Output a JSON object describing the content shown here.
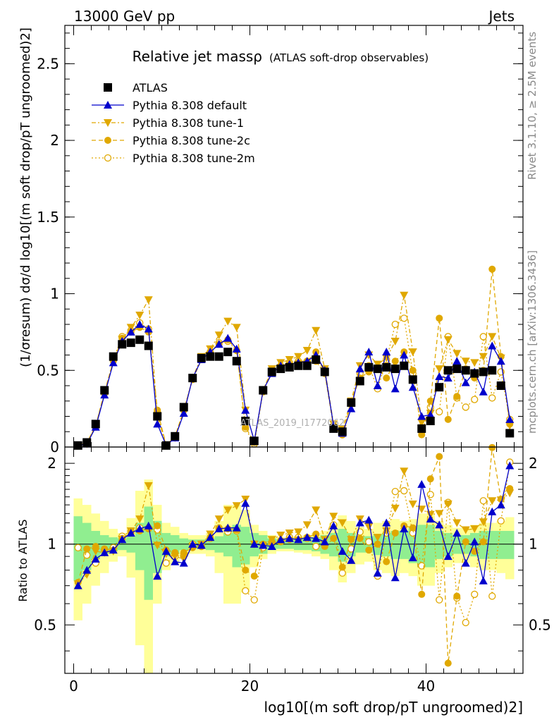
{
  "header": {
    "left": "13000 GeV pp",
    "right": "Jets"
  },
  "side_text": {
    "rivet": "Rivet 3.1.10, ≥ 2.5M events",
    "mcplots": "mcplots.cern.ch [arXiv:1306.3436]"
  },
  "chart_data": {
    "type": "scatter",
    "title": "Relative jet massρ",
    "subtitle": "(ATLAS soft-drop observables)",
    "watermark": "ATLAS_2019_I1772062",
    "ylabel": "(1/σresum) dσ/d log10[(m soft drop/pT ungroomed)2]",
    "xlabel": "log10[(m soft drop/pT ungroomed)2]",
    "ratio_ylabel": "Ratio to ATLAS",
    "xlim": [
      -1,
      51
    ],
    "ylim": [
      0,
      2.75
    ],
    "ratio_ylim": [
      0.33,
      2.3
    ],
    "x_ticks": [
      "0",
      "20",
      "40"
    ],
    "y_ticks": [
      "0",
      "0.5",
      "1",
      "1.5",
      "2",
      "2.5"
    ],
    "ratio_ticks": [
      "0.5",
      "1",
      "2"
    ],
    "legend_position": "top-left",
    "x": [
      0.5,
      1.5,
      2.5,
      3.5,
      4.5,
      5.5,
      6.5,
      7.5,
      8.5,
      9.5,
      10.5,
      11.5,
      12.5,
      13.5,
      14.5,
      15.5,
      16.5,
      17.5,
      18.5,
      19.5,
      20.5,
      21.5,
      22.5,
      23.5,
      24.5,
      25.5,
      26.5,
      27.5,
      28.5,
      29.5,
      30.5,
      31.5,
      32.5,
      33.5,
      34.5,
      35.5,
      36.5,
      37.5,
      38.5,
      39.5,
      40.5,
      41.5,
      42.5,
      43.5,
      44.5,
      45.5,
      46.5,
      47.5,
      48.5,
      49.5
    ],
    "series": [
      {
        "name": "ATLAS",
        "color": "#000000",
        "marker": "square",
        "values": [
          0.01,
          0.03,
          0.15,
          0.37,
          0.59,
          0.67,
          0.68,
          0.7,
          0.66,
          0.2,
          0.01,
          0.07,
          0.26,
          0.45,
          0.58,
          0.59,
          0.59,
          0.62,
          0.56,
          0.17,
          0.04,
          0.37,
          0.49,
          0.51,
          0.52,
          0.53,
          0.53,
          0.57,
          0.49,
          0.12,
          0.1,
          0.29,
          0.43,
          0.52,
          0.51,
          0.52,
          0.51,
          0.53,
          0.44,
          0.12,
          0.17,
          0.39,
          0.5,
          0.51,
          0.5,
          0.48,
          0.49,
          0.5,
          0.4,
          0.09
        ],
        "ratio": [
          1,
          1,
          1,
          1,
          1,
          1,
          1,
          1,
          1,
          1,
          1,
          1,
          1,
          1,
          1,
          1,
          1,
          1,
          1,
          1,
          1,
          1,
          1,
          1,
          1,
          1,
          1,
          1,
          1,
          1,
          1,
          1,
          1,
          1,
          1,
          1,
          1,
          1,
          1,
          1,
          1,
          1,
          1,
          1,
          1,
          1,
          1,
          1,
          1,
          1
        ]
      },
      {
        "name": "Pythia 8.308 default",
        "color": "#0000cc",
        "marker": "triangle-up",
        "line": "solid",
        "values": [
          0.01,
          0.02,
          0.13,
          0.34,
          0.55,
          0.69,
          0.75,
          0.8,
          0.77,
          0.15,
          0.01,
          0.06,
          0.22,
          0.45,
          0.57,
          0.62,
          0.67,
          0.71,
          0.64,
          0.24,
          0.04,
          0.37,
          0.48,
          0.53,
          0.54,
          0.55,
          0.56,
          0.6,
          0.5,
          0.14,
          0.09,
          0.25,
          0.51,
          0.62,
          0.4,
          0.62,
          0.38,
          0.6,
          0.39,
          0.2,
          0.21,
          0.46,
          0.45,
          0.56,
          0.42,
          0.49,
          0.36,
          0.66,
          0.56,
          0.18
        ],
        "ratio": [
          0.7,
          0.8,
          0.88,
          0.93,
          0.95,
          1.04,
          1.1,
          1.14,
          1.17,
          0.76,
          0.94,
          0.86,
          0.85,
          1.0,
          0.99,
          1.06,
          1.14,
          1.15,
          1.15,
          1.42,
          1.0,
          0.99,
          0.98,
          1.04,
          1.05,
          1.04,
          1.06,
          1.05,
          1.02,
          1.17,
          0.94,
          0.87,
          1.2,
          1.23,
          0.78,
          1.2,
          0.75,
          1.14,
          0.89,
          1.67,
          1.24,
          1.18,
          0.9,
          1.1,
          0.85,
          1.02,
          0.73,
          1.32,
          1.4,
          1.96
        ]
      },
      {
        "name": "Pythia 8.308 tune-1",
        "color": "#e0a800",
        "marker": "triangle-down",
        "line": "dashdot",
        "values": [
          0.01,
          0.02,
          0.14,
          0.35,
          0.56,
          0.7,
          0.78,
          0.86,
          0.96,
          0.2,
          0.01,
          0.06,
          0.23,
          0.45,
          0.59,
          0.64,
          0.73,
          0.82,
          0.78,
          0.24,
          0.04,
          0.37,
          0.51,
          0.55,
          0.57,
          0.59,
          0.63,
          0.76,
          0.51,
          0.15,
          0.12,
          0.3,
          0.53,
          0.6,
          0.54,
          0.58,
          0.69,
          0.99,
          0.62,
          0.16,
          0.22,
          0.51,
          0.7,
          0.61,
          0.56,
          0.55,
          0.59,
          0.72,
          0.58,
          0.14
        ],
        "ratio": [
          0.71,
          0.77,
          0.94,
          0.93,
          0.94,
          1.04,
          1.12,
          1.24,
          1.65,
          0.99,
          0.92,
          0.9,
          0.88,
          0.98,
          1.0,
          1.09,
          1.24,
          1.34,
          1.39,
          1.47,
          1.0,
          0.99,
          1.04,
          1.08,
          1.1,
          1.11,
          1.18,
          1.34,
          1.04,
          1.27,
          1.2,
          1.04,
          1.24,
          1.16,
          1.06,
          1.12,
          1.36,
          1.87,
          1.41,
          1.35,
          1.29,
          1.3,
          1.41,
          1.2,
          1.13,
          1.14,
          1.21,
          1.45,
          1.46,
          1.55
        ]
      },
      {
        "name": "Pythia 8.308 tune-2c",
        "color": "#e0a800",
        "marker": "circle",
        "line": "dashed",
        "values": [
          0.01,
          0.03,
          0.14,
          0.36,
          0.56,
          0.71,
          0.75,
          0.78,
          0.75,
          0.24,
          0.01,
          0.07,
          0.24,
          0.44,
          0.57,
          0.62,
          0.67,
          0.7,
          0.63,
          0.13,
          0.03,
          0.37,
          0.49,
          0.52,
          0.54,
          0.55,
          0.56,
          0.62,
          0.48,
          0.13,
          0.08,
          0.3,
          0.45,
          0.49,
          0.51,
          0.45,
          0.56,
          0.62,
          0.5,
          0.08,
          0.3,
          0.84,
          0.18,
          0.33,
          0.51,
          0.45,
          0.5,
          1.16,
          0.59,
          0.15
        ],
        "ratio": [
          0.72,
          0.96,
          0.98,
          0.96,
          0.95,
          1.05,
          1.1,
          1.12,
          1.14,
          1.17,
          0.95,
          0.93,
          0.93,
          0.97,
          0.98,
          1.06,
          1.14,
          1.14,
          1.13,
          0.8,
          0.76,
          1.0,
          1.01,
          1.02,
          1.04,
          1.04,
          1.06,
          1.09,
          0.98,
          1.05,
          0.82,
          1.04,
          1.05,
          0.95,
          1.0,
          0.86,
          1.1,
          1.17,
          1.15,
          0.65,
          1.75,
          2.12,
          0.36,
          0.64,
          1.02,
          0.94,
          1.02,
          2.29,
          1.47,
          1.61
        ]
      },
      {
        "name": "Pythia 8.308 tune-2m",
        "color": "#e0a800",
        "marker": "circle-open",
        "line": "dotted",
        "values": [
          0.01,
          0.03,
          0.13,
          0.35,
          0.57,
          0.72,
          0.76,
          0.81,
          0.77,
          0.23,
          0.01,
          0.07,
          0.24,
          0.45,
          0.57,
          0.62,
          0.68,
          0.69,
          0.63,
          0.12,
          0.02,
          0.36,
          0.5,
          0.53,
          0.55,
          0.56,
          0.56,
          0.56,
          0.48,
          0.14,
          0.08,
          0.28,
          0.48,
          0.53,
          0.38,
          0.57,
          0.8,
          0.84,
          0.48,
          0.1,
          0.26,
          0.23,
          0.72,
          0.32,
          0.26,
          0.31,
          0.72,
          0.32,
          0.49,
          0.18
        ],
        "ratio": [
          0.97,
          0.91,
          0.85,
          0.95,
          0.97,
          1.07,
          1.12,
          1.15,
          1.15,
          1.13,
          0.85,
          0.9,
          0.92,
          1.0,
          0.98,
          1.05,
          1.15,
          1.11,
          1.12,
          0.67,
          0.62,
          0.97,
          1.02,
          1.03,
          1.06,
          1.06,
          1.05,
          0.98,
          0.99,
          1.18,
          0.78,
          0.96,
          1.11,
          1.02,
          0.76,
          1.1,
          1.57,
          1.58,
          1.1,
          0.83,
          1.53,
          0.62,
          1.43,
          0.63,
          0.51,
          0.65,
          1.45,
          0.64,
          1.22,
          2.02
        ]
      }
    ],
    "ratio_band_inner": [
      0.27,
      0.2,
      0.12,
      0.08,
      0.06,
      0.05,
      0.07,
      0.2,
      0.38,
      0.22,
      0.1,
      0.08,
      0.05,
      0.04,
      0.04,
      0.05,
      0.07,
      0.1,
      0.18,
      0.16,
      0.1,
      0.08,
      0.05,
      0.04,
      0.04,
      0.05,
      0.05,
      0.06,
      0.08,
      0.1,
      0.14,
      0.1,
      0.07,
      0.07,
      0.09,
      0.1,
      0.12,
      0.12,
      0.15,
      0.18,
      0.18,
      0.12,
      0.1,
      0.08,
      0.08,
      0.1,
      0.12,
      0.12,
      0.12,
      0.12
    ],
    "ratio_band_outer": [
      0.48,
      0.4,
      0.3,
      0.22,
      0.14,
      0.1,
      0.25,
      0.58,
      0.74,
      0.4,
      0.2,
      0.16,
      0.1,
      0.08,
      0.08,
      0.1,
      0.22,
      0.4,
      0.4,
      0.34,
      0.18,
      0.12,
      0.08,
      0.06,
      0.06,
      0.07,
      0.08,
      0.1,
      0.12,
      0.2,
      0.28,
      0.22,
      0.16,
      0.14,
      0.2,
      0.22,
      0.24,
      0.22,
      0.24,
      0.3,
      0.3,
      0.22,
      0.18,
      0.15,
      0.15,
      0.18,
      0.2,
      0.2,
      0.22,
      0.26
    ]
  }
}
